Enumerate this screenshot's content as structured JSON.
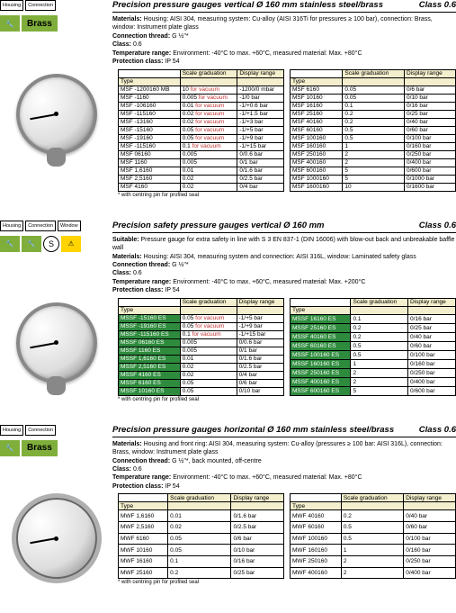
{
  "s1": {
    "badges": {
      "housing": "Housing",
      "connection": "Connection",
      "brass": "Brass"
    },
    "title": "Precision pressure gauges vertical Ø 160 mm stainless steel/brass",
    "class": "Class 0.6",
    "specs": {
      "l1b": "Materials:",
      "l1": "Housing: AISI 304, measuring system: Cu-alloy (AISI 316Ti for pressures ≥ 100 bar), connection: Brass, window: Instrument plate glass",
      "l2b": "Connection thread:",
      "l2": "G ½\"*",
      "l3b": "Class:",
      "l3": "0.6",
      "l4b": "Temperature range:",
      "l4": "Environment: -40°C to max. +60°C, measured material: Max. +80°C",
      "l5b": "Protection class:",
      "l5": "IP 54"
    },
    "forvac": "for vacuum",
    "th": {
      "type": "Type",
      "grad": "Scale graduation",
      "range": "Display range"
    },
    "left": [
      [
        "MSF -1200160 MB",
        "10",
        "-1200/0 mbar",
        1
      ],
      [
        "MSF -1160",
        "0.005",
        "-1/0 bar",
        1
      ],
      [
        "MSF -106160",
        "0.01",
        "-1/+0.6 bar",
        1
      ],
      [
        "MSF -115160",
        "0.02",
        "-1/+1.5 bar",
        1
      ],
      [
        "MSF -13160",
        "0.02",
        "-1/+3 bar",
        1
      ],
      [
        "MSF -15160",
        "0.05",
        "-1/+5 bar",
        1
      ],
      [
        "MSF -19160",
        "0.05",
        "-1/+9 bar",
        1
      ],
      [
        "MSF -115160",
        "0.1",
        "-1/+15 bar",
        1
      ],
      [
        "MSF 06160",
        "0.005",
        "0/0.6 bar",
        0
      ],
      [
        "MSF 1160",
        "0.005",
        "0/1 bar",
        0
      ],
      [
        "MSF 1,6160",
        "0.01",
        "0/1.6 bar",
        0
      ],
      [
        "MSF 2,5160",
        "0.02",
        "0/2.5 bar",
        0
      ],
      [
        "MSF 4160",
        "0.02",
        "0/4 bar",
        0
      ]
    ],
    "right": [
      [
        "MSF 6160",
        "0.05",
        "0/6 bar"
      ],
      [
        "MSF 10160",
        "0.05",
        "0/10 bar"
      ],
      [
        "MSF 16160",
        "0.1",
        "0/16 bar"
      ],
      [
        "MSF 25160",
        "0.2",
        "0/25 bar"
      ],
      [
        "MSF 40160",
        "0.2",
        "0/40 bar"
      ],
      [
        "MSF 60160",
        "0.5",
        "0/60 bar"
      ],
      [
        "MSF 100160",
        "0.5",
        "0/100 bar"
      ],
      [
        "MSF 160160",
        "1",
        "0/160 bar"
      ],
      [
        "MSF 250160",
        "2",
        "0/250 bar"
      ],
      [
        "MSF 400160",
        "2",
        "0/400 bar"
      ],
      [
        "MSF 600160",
        "5",
        "0/600 bar"
      ],
      [
        "MSF 1000160",
        "5",
        "0/1000 bar"
      ],
      [
        "MSF 1600160",
        "10",
        "0/1600 bar"
      ]
    ],
    "footnote": "* with centring pin for profiled seal"
  },
  "s2": {
    "badges": {
      "housing": "Housing",
      "connection": "Connection",
      "window": "Window",
      "s": "S"
    },
    "title": "Precision safety pressure gauges vertical Ø 160 mm",
    "class": "Class 0.6",
    "specs": {
      "l0b": "Suitable:",
      "l0": "Pressure gauge for extra safety in line with S 3 EN 837-1 (DIN 16006) with blow-out back and unbreakable baffle wall",
      "l1b": "Materials:",
      "l1": "Housing: AISI 304, measuring system and connection: AISI 316L, window: Laminated safety glass",
      "l2b": "Connection thread:",
      "l2": "G ½\"*",
      "l3b": "Class:",
      "l3": "0.6",
      "l4b": "Temperature range:",
      "l4": "Environment: -40°C to max. +60°C, measured material: Max. +200°C",
      "l5b": "Protection class:",
      "l5": "IP 54"
    },
    "forvac": "for vacuum",
    "th": {
      "type": "Type",
      "grad": "Scale graduation",
      "range": "Display range"
    },
    "left": [
      [
        "MSSF -15160 ES",
        "0.05",
        "-1/+5 bar",
        1,
        1
      ],
      [
        "MSSF -19160 ES",
        "0.05",
        "-1/+9 bar",
        1,
        1
      ],
      [
        "MSSF -115160 ES",
        "0.1",
        "-1/+15 bar",
        1,
        1
      ],
      [
        "MSSF 06160 ES",
        "0.005",
        "0/0.6 bar",
        0,
        1
      ],
      [
        "MSSF 1160 ES",
        "0.005",
        "0/1 bar",
        0,
        1
      ],
      [
        "MSSF 1,6160 ES",
        "0.01",
        "0/1.6 bar",
        0,
        1
      ],
      [
        "MSSF 2,5160 ES",
        "0.02",
        "0/2.5 bar",
        0,
        1
      ],
      [
        "MSSF 4160 ES",
        "0.02",
        "0/4 bar",
        0,
        1
      ],
      [
        "MSSF 6160 ES",
        "0.05",
        "0/6 bar",
        0,
        1
      ],
      [
        "MSSF 10160 ES",
        "0.05",
        "0/10 bar",
        0,
        1
      ]
    ],
    "right": [
      [
        "MSSF 16160 ES",
        "0.1",
        "0/16 bar",
        1
      ],
      [
        "MSSF 25160 ES",
        "0.2",
        "0/25 bar",
        1
      ],
      [
        "MSSF 40160 ES",
        "0.2",
        "0/40 bar",
        1
      ],
      [
        "MSSF 60160 ES",
        "0.5",
        "0/60 bar",
        1
      ],
      [
        "MSSF 100160 ES",
        "0.5",
        "0/100 bar",
        1
      ],
      [
        "MSSF 160160 ES",
        "1",
        "0/160 bar",
        1
      ],
      [
        "MSSF 250160 ES",
        "2",
        "0/250 bar",
        1
      ],
      [
        "MSSF 400160 ES",
        "2",
        "0/400 bar",
        1
      ],
      [
        "MSSF 600160 ES",
        "5",
        "0/600 bar",
        1
      ]
    ],
    "footnote": "* with centring pin for profiled seal"
  },
  "s3": {
    "badges": {
      "housing": "Housing",
      "connection": "Connection",
      "brass": "Brass"
    },
    "title": "Precision pressure gauges horizontal Ø 160 mm stainless steel/brass",
    "class": "Class 0.6",
    "specs": {
      "l1b": "Materials:",
      "l1": "Housing and front ring: AISI 304, measuring system: Cu-alloy (pressures ≥ 100 bar: AISI 316L), connection: Brass, window: Instrument plate glass",
      "l2b": "Connection thread:",
      "l2": "G ½\"*, back mounted, off-centre",
      "l3b": "Class:",
      "l3": "0.6",
      "l4b": "Temperature range:",
      "l4": "Environment: -40°C to max. +60°C, measured material: Max. +80°C",
      "l5b": "Protection class:",
      "l5": "IP 54"
    },
    "th": {
      "type": "Type",
      "grad": "Scale graduation",
      "range": "Display range"
    },
    "left": [
      [
        "MWF 1,6160",
        "0.01",
        "0/1.6 bar"
      ],
      [
        "MWF 2,5160",
        "0.02",
        "0/2.5 bar"
      ],
      [
        "MWF 6160",
        "0.05",
        "0/6 bar"
      ],
      [
        "MWF 10160",
        "0.05",
        "0/10 bar"
      ],
      [
        "MWF 16160",
        "0.1",
        "0/16 bar"
      ],
      [
        "MWF 25160",
        "0.2",
        "0/25 bar"
      ]
    ],
    "right": [
      [
        "MWF 40160",
        "0.2",
        "0/40 bar"
      ],
      [
        "MWF 60160",
        "0.5",
        "0/60 bar"
      ],
      [
        "MWF 100160",
        "0.5",
        "0/100 bar"
      ],
      [
        "MWF 160160",
        "1",
        "0/160 bar"
      ],
      [
        "MWF 250160",
        "2",
        "0/250 bar"
      ],
      [
        "MWF 400160",
        "2",
        "0/400 bar"
      ]
    ],
    "footnote": "* with centring pin for profiled seal"
  }
}
